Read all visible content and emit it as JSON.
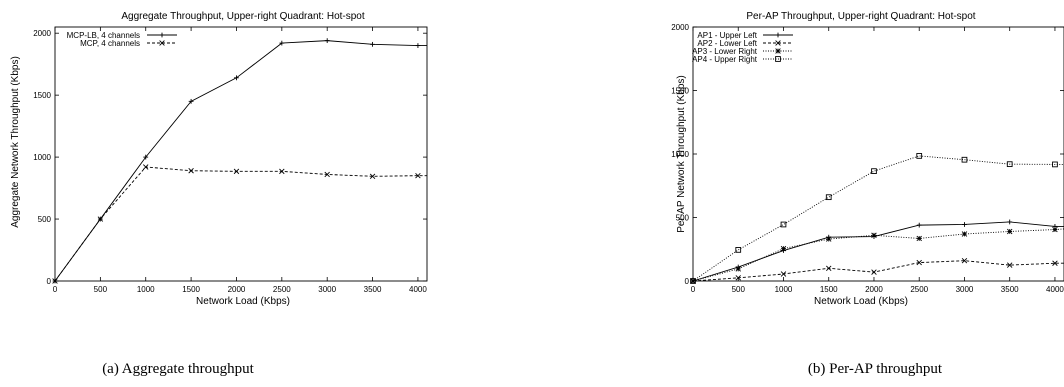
{
  "captions": [
    "(a)  Aggregate throughput",
    "(b) Per-AP throughput"
  ],
  "chart_data": [
    {
      "type": "line",
      "title": "Aggregate Throughput, Upper-right Quadrant: Hot-spot",
      "xlabel": "Network Load (Kbps)",
      "ylabel": "Aggregate Network Throughput (Kbps)",
      "xlim": [
        0,
        4100
      ],
      "ylim": [
        0,
        2050
      ],
      "xticks": [
        0,
        500,
        1000,
        1500,
        2000,
        2500,
        3000,
        3500,
        4000
      ],
      "yticks": [
        0,
        500,
        1000,
        1500,
        2000
      ],
      "legend_position": "top-left",
      "grid": false,
      "x": [
        0,
        500,
        1000,
        1500,
        2000,
        2500,
        3000,
        3500,
        4000,
        4100
      ],
      "series": [
        {
          "name": "MCP-LB, 4 channels",
          "marker": "plus",
          "dash": "solid",
          "values": [
            0,
            500,
            1000,
            1450,
            1640,
            1920,
            1940,
            1910,
            1900,
            1900
          ]
        },
        {
          "name": "MCP, 4 channels",
          "marker": "x",
          "dash": "dashed",
          "values": [
            0,
            500,
            920,
            890,
            885,
            885,
            860,
            845,
            850,
            850
          ]
        }
      ]
    },
    {
      "type": "line",
      "title": "Per-AP Throughput, Upper-right Quadrant: Hot-spot",
      "xlabel": "Network Load (Kbps)",
      "ylabel": "Per-AP Network Throughput (Kbps)",
      "xlim": [
        0,
        4100
      ],
      "ylim": [
        0,
        2000
      ],
      "xticks": [
        0,
        500,
        1000,
        1500,
        2000,
        2500,
        3000,
        3500,
        4000
      ],
      "yticks": [
        0,
        500,
        1000,
        1500,
        2000
      ],
      "legend_position": "top-left",
      "grid": false,
      "x": [
        0,
        500,
        1000,
        1500,
        2000,
        2500,
        3000,
        3500,
        4000,
        4100
      ],
      "series": [
        {
          "name": "AP1 - Upper Left",
          "marker": "plus",
          "dash": "solid",
          "values": [
            0,
            110,
            240,
            345,
            350,
            440,
            445,
            465,
            430,
            430
          ]
        },
        {
          "name": "AP2 - Lower Left",
          "marker": "x",
          "dash": "dashed",
          "values": [
            0,
            25,
            55,
            100,
            70,
            145,
            160,
            125,
            140,
            140
          ]
        },
        {
          "name": "AP3 - Lower Right",
          "marker": "star",
          "dash": "dotted",
          "values": [
            0,
            95,
            255,
            330,
            360,
            335,
            370,
            390,
            405,
            410
          ]
        },
        {
          "name": "AP4 - Upper Right",
          "marker": "square",
          "dash": "dotted",
          "values": [
            0,
            245,
            445,
            660,
            865,
            985,
            955,
            920,
            918,
            918
          ]
        }
      ]
    }
  ]
}
